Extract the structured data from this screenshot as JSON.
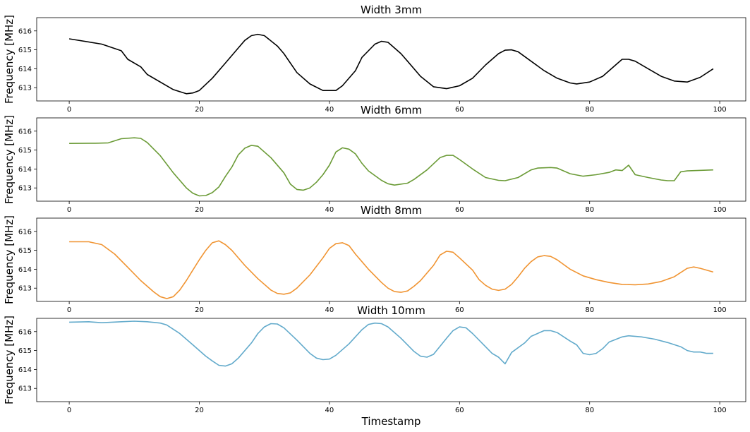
{
  "chart_data": [
    {
      "type": "line",
      "title": "Width 3mm",
      "ylabel": "Frequency [MHz]",
      "xlabel": "",
      "color": "#000000",
      "xlim": [
        -5,
        104
      ],
      "ylim": [
        612.3,
        616.7
      ],
      "xticks": [
        0,
        20,
        40,
        60,
        80,
        100
      ],
      "yticks": [
        613,
        614,
        615,
        616
      ],
      "points": [
        [
          0,
          615.58
        ],
        [
          5,
          615.3
        ],
        [
          8,
          614.95
        ],
        [
          9,
          614.5
        ],
        [
          11,
          614.1
        ],
        [
          12,
          613.7
        ],
        [
          16,
          612.9
        ],
        [
          18,
          612.68
        ],
        [
          19,
          612.72
        ],
        [
          20,
          612.85
        ],
        [
          22,
          613.5
        ],
        [
          24,
          614.3
        ],
        [
          26,
          615.1
        ],
        [
          27,
          615.5
        ],
        [
          28,
          615.75
        ],
        [
          29,
          615.82
        ],
        [
          30,
          615.75
        ],
        [
          32,
          615.2
        ],
        [
          33,
          614.8
        ],
        [
          35,
          613.8
        ],
        [
          37,
          613.2
        ],
        [
          39,
          612.85
        ],
        [
          41,
          612.85
        ],
        [
          42,
          613.1
        ],
        [
          44,
          613.9
        ],
        [
          45,
          614.6
        ],
        [
          47,
          615.3
        ],
        [
          48,
          615.45
        ],
        [
          49,
          615.4
        ],
        [
          51,
          614.8
        ],
        [
          52,
          614.4
        ],
        [
          54,
          613.6
        ],
        [
          56,
          613.05
        ],
        [
          58,
          612.95
        ],
        [
          60,
          613.1
        ],
        [
          62,
          613.5
        ],
        [
          64,
          614.2
        ],
        [
          66,
          614.8
        ],
        [
          67,
          614.98
        ],
        [
          68,
          615.0
        ],
        [
          69,
          614.9
        ],
        [
          71,
          614.4
        ],
        [
          73,
          613.9
        ],
        [
          75,
          613.5
        ],
        [
          77,
          613.25
        ],
        [
          78,
          613.2
        ],
        [
          80,
          613.3
        ],
        [
          82,
          613.6
        ],
        [
          84,
          614.2
        ],
        [
          85,
          614.5
        ],
        [
          86,
          614.5
        ],
        [
          87,
          614.4
        ],
        [
          89,
          614.0
        ],
        [
          91,
          613.6
        ],
        [
          93,
          613.35
        ],
        [
          95,
          613.3
        ],
        [
          97,
          613.55
        ],
        [
          99,
          614.0
        ]
      ]
    },
    {
      "type": "line",
      "title": "Width 6mm",
      "ylabel": "Frequency [MHz]",
      "xlabel": "",
      "color": "#6b9b37",
      "xlim": [
        -5,
        104
      ],
      "ylim": [
        612.3,
        616.7
      ],
      "xticks": [
        0,
        20,
        40,
        60,
        80,
        100
      ],
      "yticks": [
        613,
        614,
        615,
        616
      ],
      "points": [
        [
          0,
          615.35
        ],
        [
          4,
          615.36
        ],
        [
          6,
          615.38
        ],
        [
          8,
          615.6
        ],
        [
          10,
          615.65
        ],
        [
          11,
          615.62
        ],
        [
          12,
          615.4
        ],
        [
          14,
          614.7
        ],
        [
          16,
          613.8
        ],
        [
          18,
          613.0
        ],
        [
          19,
          612.72
        ],
        [
          20,
          612.58
        ],
        [
          21,
          612.6
        ],
        [
          22,
          612.75
        ],
        [
          23,
          613.05
        ],
        [
          24,
          613.6
        ],
        [
          25,
          614.1
        ],
        [
          26,
          614.75
        ],
        [
          27,
          615.1
        ],
        [
          28,
          615.25
        ],
        [
          29,
          615.2
        ],
        [
          31,
          614.6
        ],
        [
          33,
          613.8
        ],
        [
          34,
          613.2
        ],
        [
          35,
          612.92
        ],
        [
          36,
          612.88
        ],
        [
          37,
          613.0
        ],
        [
          38,
          613.3
        ],
        [
          39,
          613.7
        ],
        [
          40,
          614.2
        ],
        [
          41,
          614.9
        ],
        [
          42,
          615.12
        ],
        [
          43,
          615.05
        ],
        [
          44,
          614.8
        ],
        [
          45,
          614.3
        ],
        [
          46,
          613.9
        ],
        [
          48,
          613.4
        ],
        [
          49,
          613.22
        ],
        [
          50,
          613.15
        ],
        [
          52,
          613.25
        ],
        [
          53,
          613.45
        ],
        [
          55,
          613.95
        ],
        [
          57,
          614.6
        ],
        [
          58,
          614.72
        ],
        [
          59,
          614.72
        ],
        [
          60,
          614.5
        ],
        [
          62,
          614.0
        ],
        [
          64,
          613.55
        ],
        [
          66,
          613.4
        ],
        [
          67,
          613.38
        ],
        [
          69,
          613.55
        ],
        [
          71,
          613.95
        ],
        [
          72,
          614.05
        ],
        [
          74,
          614.08
        ],
        [
          75,
          614.05
        ],
        [
          77,
          613.75
        ],
        [
          79,
          613.62
        ],
        [
          81,
          613.7
        ],
        [
          83,
          613.82
        ],
        [
          84,
          613.95
        ],
        [
          85,
          613.92
        ],
        [
          86,
          614.2
        ],
        [
          87,
          613.7
        ],
        [
          89,
          613.55
        ],
        [
          91,
          613.42
        ],
        [
          92,
          613.38
        ],
        [
          93,
          613.38
        ],
        [
          94,
          613.85
        ],
        [
          95,
          613.9
        ],
        [
          99,
          613.95
        ]
      ]
    },
    {
      "type": "line",
      "title": "Width 8mm",
      "ylabel": "Frequency [MHz]",
      "xlabel": "",
      "color": "#f09432",
      "xlim": [
        -5,
        104
      ],
      "ylim": [
        612.3,
        616.7
      ],
      "xticks": [
        0,
        20,
        40,
        60,
        80,
        100
      ],
      "yticks": [
        613,
        614,
        615,
        616
      ],
      "points": [
        [
          0,
          615.45
        ],
        [
          3,
          615.45
        ],
        [
          5,
          615.3
        ],
        [
          7,
          614.8
        ],
        [
          9,
          614.1
        ],
        [
          11,
          613.4
        ],
        [
          13,
          612.8
        ],
        [
          14,
          612.55
        ],
        [
          15,
          612.45
        ],
        [
          16,
          612.55
        ],
        [
          17,
          612.9
        ],
        [
          18,
          613.4
        ],
        [
          19,
          613.95
        ],
        [
          20,
          614.5
        ],
        [
          21,
          615.0
        ],
        [
          22,
          615.4
        ],
        [
          23,
          615.5
        ],
        [
          24,
          615.3
        ],
        [
          25,
          615.0
        ],
        [
          27,
          614.2
        ],
        [
          29,
          613.5
        ],
        [
          31,
          612.9
        ],
        [
          32,
          612.72
        ],
        [
          33,
          612.68
        ],
        [
          34,
          612.75
        ],
        [
          35,
          613.0
        ],
        [
          37,
          613.7
        ],
        [
          39,
          614.6
        ],
        [
          40,
          615.1
        ],
        [
          41,
          615.35
        ],
        [
          42,
          615.4
        ],
        [
          43,
          615.25
        ],
        [
          44,
          614.8
        ],
        [
          46,
          614.0
        ],
        [
          48,
          613.3
        ],
        [
          49,
          613.0
        ],
        [
          50,
          612.82
        ],
        [
          51,
          612.78
        ],
        [
          52,
          612.85
        ],
        [
          53,
          613.1
        ],
        [
          54,
          613.4
        ],
        [
          56,
          614.2
        ],
        [
          57,
          614.75
        ],
        [
          58,
          614.95
        ],
        [
          59,
          614.9
        ],
        [
          60,
          614.6
        ],
        [
          62,
          613.95
        ],
        [
          63,
          613.45
        ],
        [
          64,
          613.15
        ],
        [
          65,
          612.95
        ],
        [
          66,
          612.88
        ],
        [
          67,
          612.95
        ],
        [
          68,
          613.2
        ],
        [
          69,
          613.6
        ],
        [
          70,
          614.05
        ],
        [
          71,
          614.4
        ],
        [
          72,
          614.65
        ],
        [
          73,
          614.72
        ],
        [
          74,
          614.68
        ],
        [
          75,
          614.5
        ],
        [
          77,
          614.0
        ],
        [
          79,
          613.65
        ],
        [
          81,
          613.45
        ],
        [
          83,
          613.3
        ],
        [
          85,
          613.2
        ],
        [
          87,
          613.18
        ],
        [
          89,
          613.22
        ],
        [
          91,
          613.35
        ],
        [
          93,
          613.6
        ],
        [
          95,
          614.05
        ],
        [
          96,
          614.12
        ],
        [
          97,
          614.05
        ],
        [
          99,
          613.85
        ]
      ]
    },
    {
      "type": "line",
      "title": "Width 10mm",
      "ylabel": "Frequency [MHz]",
      "xlabel": "Timestamp",
      "color": "#62aacb",
      "xlim": [
        -5,
        104
      ],
      "ylim": [
        612.3,
        616.7
      ],
      "xticks": [
        0,
        20,
        40,
        60,
        80,
        100
      ],
      "yticks": [
        613,
        614,
        615,
        616
      ],
      "points": [
        [
          0,
          616.5
        ],
        [
          3,
          616.52
        ],
        [
          5,
          616.47
        ],
        [
          8,
          616.52
        ],
        [
          10,
          616.55
        ],
        [
          12,
          616.52
        ],
        [
          14,
          616.45
        ],
        [
          15,
          616.35
        ],
        [
          17,
          615.9
        ],
        [
          19,
          615.3
        ],
        [
          21,
          614.7
        ],
        [
          22,
          614.45
        ],
        [
          23,
          614.22
        ],
        [
          24,
          614.18
        ],
        [
          25,
          614.3
        ],
        [
          26,
          614.6
        ],
        [
          28,
          615.4
        ],
        [
          29,
          615.9
        ],
        [
          30,
          616.25
        ],
        [
          31,
          616.42
        ],
        [
          32,
          616.4
        ],
        [
          33,
          616.2
        ],
        [
          35,
          615.55
        ],
        [
          37,
          614.85
        ],
        [
          38,
          614.6
        ],
        [
          39,
          614.52
        ],
        [
          40,
          614.55
        ],
        [
          41,
          614.75
        ],
        [
          43,
          615.35
        ],
        [
          45,
          616.1
        ],
        [
          46,
          616.38
        ],
        [
          47,
          616.45
        ],
        [
          48,
          616.42
        ],
        [
          49,
          616.25
        ],
        [
          51,
          615.65
        ],
        [
          53,
          614.95
        ],
        [
          54,
          614.7
        ],
        [
          55,
          614.65
        ],
        [
          56,
          614.8
        ],
        [
          58,
          615.65
        ],
        [
          59,
          616.05
        ],
        [
          60,
          616.25
        ],
        [
          61,
          616.2
        ],
        [
          62,
          615.9
        ],
        [
          64,
          615.2
        ],
        [
          65,
          614.85
        ],
        [
          66,
          614.65
        ],
        [
          67,
          614.3
        ],
        [
          68,
          614.9
        ],
        [
          70,
          615.4
        ],
        [
          71,
          615.75
        ],
        [
          73,
          616.05
        ],
        [
          74,
          616.05
        ],
        [
          75,
          615.95
        ],
        [
          77,
          615.5
        ],
        [
          78,
          615.3
        ],
        [
          79,
          614.85
        ],
        [
          80,
          614.78
        ],
        [
          81,
          614.85
        ],
        [
          82,
          615.1
        ],
        [
          83,
          615.45
        ],
        [
          85,
          615.72
        ],
        [
          86,
          615.78
        ],
        [
          88,
          615.72
        ],
        [
          90,
          615.6
        ],
        [
          92,
          615.42
        ],
        [
          94,
          615.2
        ],
        [
          95,
          615.0
        ],
        [
          96,
          614.92
        ],
        [
          97,
          614.92
        ],
        [
          98,
          614.85
        ],
        [
          99,
          614.85
        ]
      ]
    }
  ]
}
